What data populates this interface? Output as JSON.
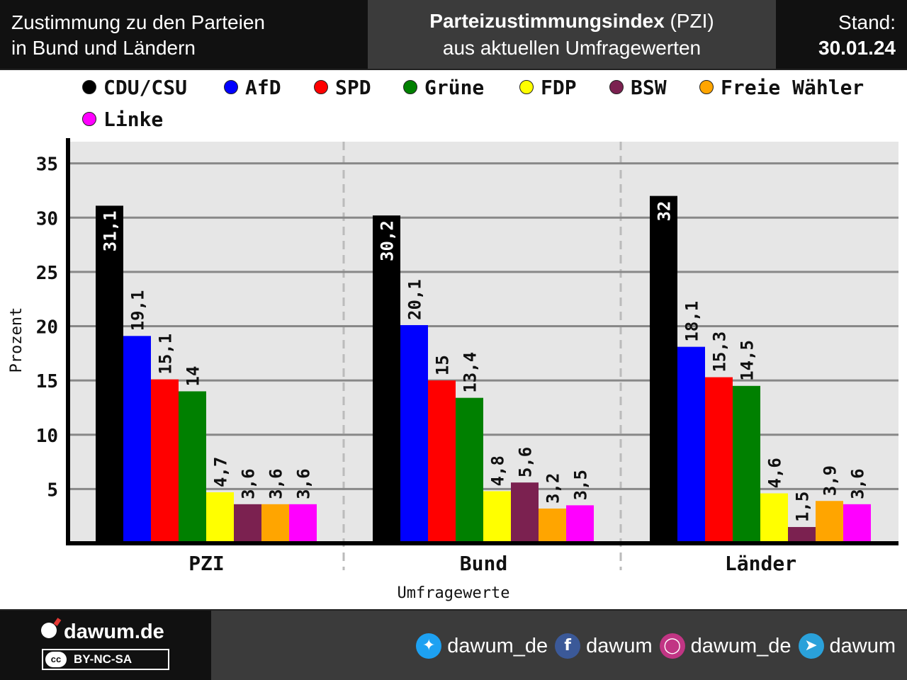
{
  "header": {
    "left_line1": "Zustimmung zu den Parteien",
    "left_line2": "in Bund und Ländern",
    "title_bold": "Parteizustimmungsindex",
    "title_rest": " (PZI)",
    "subtitle": "aus aktuellen Umfragewerten",
    "stand_label": "Stand:",
    "stand_date": "30.01.24"
  },
  "legend": [
    {
      "label": "CDU/CSU",
      "color": "#000000"
    },
    {
      "label": "AfD",
      "color": "#0000ff"
    },
    {
      "label": "SPD",
      "color": "#ff0000"
    },
    {
      "label": "Grüne",
      "color": "#008000"
    },
    {
      "label": "FDP",
      "color": "#ffff00"
    },
    {
      "label": "BSW",
      "color": "#7b2150"
    },
    {
      "label": "Freie Wähler",
      "color": "#ffa500"
    },
    {
      "label": "Linke",
      "color": "#ff00ff"
    }
  ],
  "chart_data": {
    "type": "bar",
    "categories": [
      "PZI",
      "Bund",
      "Länder"
    ],
    "xlabel": "Umfragewerte",
    "ylabel": "Prozent",
    "ylim": [
      0,
      37
    ],
    "yticks": [
      5,
      10,
      15,
      20,
      25,
      30,
      35
    ],
    "grid": true,
    "series": [
      {
        "name": "CDU/CSU",
        "color": "#000000",
        "values": [
          31.1,
          30.2,
          32
        ],
        "labels": [
          "31,1",
          "30,2",
          "32"
        ]
      },
      {
        "name": "AfD",
        "color": "#0000ff",
        "values": [
          19.1,
          20.1,
          18.1
        ],
        "labels": [
          "19,1",
          "20,1",
          "18,1"
        ]
      },
      {
        "name": "SPD",
        "color": "#ff0000",
        "values": [
          15.1,
          15,
          15.3
        ],
        "labels": [
          "15,1",
          "15",
          "15,3"
        ]
      },
      {
        "name": "Grüne",
        "color": "#008000",
        "values": [
          14,
          13.4,
          14.5
        ],
        "labels": [
          "14",
          "13,4",
          "14,5"
        ]
      },
      {
        "name": "FDP",
        "color": "#ffff00",
        "values": [
          4.7,
          4.8,
          4.6
        ],
        "labels": [
          "4,7",
          "4,8",
          "4,6"
        ]
      },
      {
        "name": "BSW",
        "color": "#7b2150",
        "values": [
          3.6,
          5.6,
          1.5
        ],
        "labels": [
          "3,6",
          "5,6",
          "1,5"
        ]
      },
      {
        "name": "Freie Wähler",
        "color": "#ffa500",
        "values": [
          3.6,
          3.2,
          3.9
        ],
        "labels": [
          "3,6",
          "3,2",
          "3,9"
        ]
      },
      {
        "name": "Linke",
        "color": "#ff00ff",
        "values": [
          3.6,
          3.5,
          3.6
        ],
        "labels": [
          "3,6",
          "3,5",
          "3,6"
        ]
      }
    ]
  },
  "footer": {
    "brand": "dawum.de",
    "license": "BY-NC-SA",
    "license_badge": "cc",
    "socials": [
      {
        "icon": "twitter-icon",
        "handle": "dawum_de",
        "color": "#1da1f2"
      },
      {
        "icon": "facebook-icon",
        "handle": "dawum",
        "color": "#3b5998"
      },
      {
        "icon": "instagram-icon",
        "handle": "dawum_de",
        "color": "#c13584"
      },
      {
        "icon": "telegram-icon",
        "handle": "dawum",
        "color": "#2aa1da"
      }
    ]
  }
}
